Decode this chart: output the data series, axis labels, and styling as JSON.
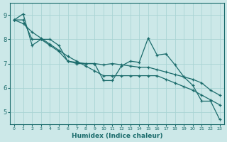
{
  "xlabel": "Humidex (Indice chaleur)",
  "xlim": [
    -0.5,
    23.5
  ],
  "ylim": [
    4.5,
    9.5
  ],
  "yticks": [
    5,
    6,
    7,
    8,
    9
  ],
  "xticks": [
    0,
    1,
    2,
    3,
    4,
    5,
    6,
    7,
    8,
    9,
    10,
    11,
    12,
    13,
    14,
    15,
    16,
    17,
    18,
    19,
    20,
    21,
    22,
    23
  ],
  "bg_color": "#cce8e8",
  "line_color": "#1a6b6b",
  "grid_color": "#aad4d4",
  "s1_x": [
    0,
    1,
    2,
    3,
    4,
    5,
    6,
    7,
    8,
    9,
    10,
    11,
    12,
    13,
    14,
    15,
    16,
    17,
    18,
    19,
    20,
    21,
    22,
    23
  ],
  "s1_y": [
    8.8,
    9.05,
    7.75,
    8.0,
    8.0,
    7.75,
    7.1,
    7.0,
    7.0,
    7.0,
    6.3,
    6.3,
    6.9,
    7.1,
    7.05,
    8.05,
    7.35,
    7.4,
    6.95,
    6.45,
    6.1,
    5.45,
    5.45,
    4.7
  ],
  "s2_x": [
    0,
    1,
    2,
    3,
    4,
    5,
    6,
    7,
    8,
    9,
    10,
    11,
    12,
    13,
    14,
    15,
    16,
    17,
    18,
    19,
    20,
    21,
    22,
    23
  ],
  "s2_y": [
    8.8,
    8.8,
    8.0,
    8.0,
    7.75,
    7.5,
    7.1,
    7.05,
    7.0,
    7.0,
    6.95,
    7.0,
    6.95,
    6.9,
    6.85,
    6.85,
    6.75,
    6.65,
    6.55,
    6.45,
    6.35,
    6.2,
    5.9,
    5.7
  ],
  "s3_x": [
    0,
    1,
    2,
    3,
    4,
    5,
    6,
    7,
    8,
    9,
    10,
    11,
    12,
    13,
    14,
    15,
    16,
    17,
    18,
    19,
    20,
    21,
    22,
    23
  ],
  "s3_y": [
    8.8,
    8.65,
    8.3,
    8.05,
    7.8,
    7.55,
    7.3,
    7.1,
    6.9,
    6.7,
    6.5,
    6.5,
    6.5,
    6.5,
    6.5,
    6.5,
    6.5,
    6.35,
    6.2,
    6.05,
    5.9,
    5.7,
    5.5,
    5.3
  ]
}
